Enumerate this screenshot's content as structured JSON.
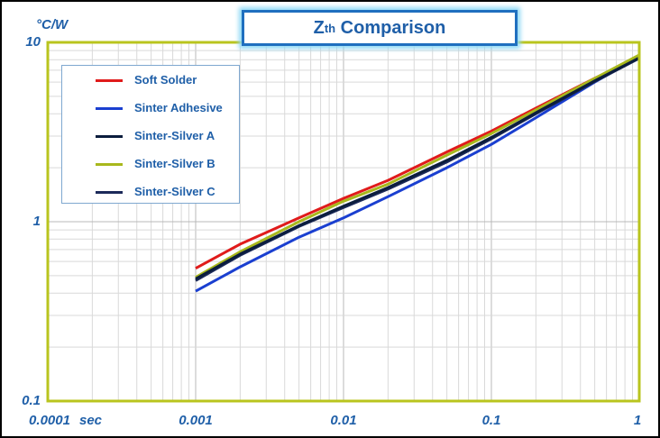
{
  "chart_data": {
    "type": "line",
    "title_main": "Z",
    "title_sub": "th",
    "title_rest": " Comparison",
    "ylabel": "°C/W",
    "xlabel": "sec",
    "x_scale": "log",
    "y_scale": "log",
    "xlim": [
      0.0001,
      1
    ],
    "ylim": [
      0.1,
      10
    ],
    "x_ticks": [
      "0.0001",
      "0.001",
      "0.01",
      "0.1",
      "1"
    ],
    "y_ticks": [
      "10",
      "1",
      "0.1"
    ],
    "grid": true,
    "legend_position": "top-left",
    "series": [
      {
        "name": "Soft Solder",
        "color": "#e01b1b",
        "x": [
          0.001,
          0.002,
          0.005,
          0.01,
          0.02,
          0.05,
          0.1,
          0.2,
          0.5,
          1
        ],
        "y": [
          0.55,
          0.75,
          1.05,
          1.35,
          1.7,
          2.45,
          3.2,
          4.3,
          6.3,
          8.3
        ]
      },
      {
        "name": "Sinter Adhesive",
        "color": "#1a3fd0",
        "x": [
          0.001,
          0.002,
          0.005,
          0.01,
          0.02,
          0.05,
          0.1,
          0.2,
          0.5,
          1
        ],
        "y": [
          0.41,
          0.56,
          0.82,
          1.05,
          1.38,
          2.0,
          2.7,
          3.8,
          6.0,
          8.3
        ]
      },
      {
        "name": "Sinter-Silver A",
        "color": "#0b1d3d",
        "x": [
          0.001,
          0.002,
          0.005,
          0.01,
          0.02,
          0.05,
          0.1,
          0.2,
          0.5,
          1
        ],
        "y": [
          0.48,
          0.66,
          0.95,
          1.22,
          1.55,
          2.2,
          2.95,
          4.05,
          6.1,
          8.2
        ]
      },
      {
        "name": "Sinter-Silver B",
        "color": "#a8b81c",
        "x": [
          0.001,
          0.002,
          0.005,
          0.01,
          0.02,
          0.05,
          0.1,
          0.2,
          0.5,
          1
        ],
        "y": [
          0.49,
          0.68,
          1.0,
          1.3,
          1.62,
          2.35,
          3.1,
          4.2,
          6.3,
          8.5
        ]
      },
      {
        "name": "Sinter-Silver C",
        "color": "#1c2a5a",
        "x": [
          0.001,
          0.002,
          0.005,
          0.01,
          0.02,
          0.05,
          0.1,
          0.2,
          0.5,
          1
        ],
        "y": [
          0.47,
          0.65,
          0.94,
          1.2,
          1.52,
          2.15,
          2.9,
          4.0,
          6.05,
          8.15
        ]
      }
    ]
  },
  "style": {
    "plot_border": "#b9c41e",
    "grid_major": "#b8b8b8",
    "grid_minor": "#d9d9d9",
    "label_color": "#1f5fa8"
  }
}
